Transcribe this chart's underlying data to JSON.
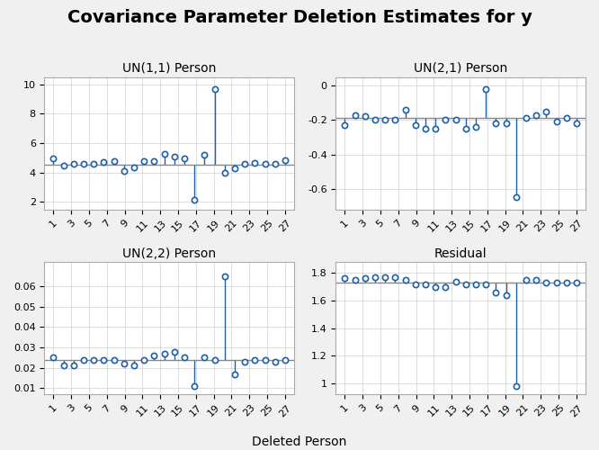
{
  "title": "Covariance Parameter Deletion Estimates for y",
  "xlabel": "Deleted Person",
  "x_labels": [
    "1",
    "3",
    "5",
    "7",
    "9",
    "11",
    "13",
    "15",
    "17",
    "19",
    "21",
    "23",
    "25",
    "27"
  ],
  "x_values": [
    1,
    3,
    5,
    7,
    9,
    11,
    13,
    15,
    17,
    19,
    21,
    23,
    25,
    27
  ],
  "subplots": [
    {
      "title": "UN(1,1) Person",
      "ref_line": 4.55,
      "ylim": [
        1.5,
        10.5
      ],
      "yticks": [
        2,
        4,
        6,
        8,
        10
      ],
      "values": [
        4.95,
        4.45,
        4.6,
        4.6,
        4.6,
        4.75,
        4.8,
        4.1,
        4.35,
        4.8,
        4.8,
        5.25,
        5.1,
        4.95,
        2.15,
        5.2,
        9.7,
        4.0,
        4.3,
        4.6,
        4.65,
        4.6,
        4.6,
        4.85
      ]
    },
    {
      "title": "UN(2,1) Person",
      "ref_line": -0.19,
      "ylim": [
        -0.72,
        0.05
      ],
      "yticks": [
        0.0,
        -0.2,
        -0.4,
        -0.6
      ],
      "values": [
        -0.23,
        -0.17,
        -0.18,
        -0.2,
        -0.2,
        -0.2,
        -0.14,
        -0.23,
        -0.25,
        -0.25,
        -0.2,
        -0.2,
        -0.25,
        -0.24,
        -0.02,
        -0.22,
        -0.22,
        -0.65,
        -0.19,
        -0.17,
        -0.15,
        -0.21,
        -0.19,
        -0.22
      ]
    },
    {
      "title": "UN(2,2) Person",
      "ref_line": 0.024,
      "ylim": [
        0.007,
        0.072
      ],
      "yticks": [
        0.01,
        0.02,
        0.03,
        0.04,
        0.05,
        0.06
      ],
      "values": [
        0.025,
        0.021,
        0.021,
        0.024,
        0.024,
        0.024,
        0.024,
        0.022,
        0.021,
        0.024,
        0.026,
        0.027,
        0.028,
        0.025,
        0.011,
        0.025,
        0.024,
        0.065,
        0.017,
        0.023,
        0.024,
        0.024,
        0.023,
        0.024
      ]
    },
    {
      "title": "Residual",
      "ref_line": 1.73,
      "ylim": [
        0.92,
        1.88
      ],
      "yticks": [
        1.0,
        1.2,
        1.4,
        1.6,
        1.8
      ],
      "values": [
        1.76,
        1.75,
        1.76,
        1.77,
        1.77,
        1.77,
        1.75,
        1.72,
        1.72,
        1.7,
        1.7,
        1.74,
        1.72,
        1.72,
        1.72,
        1.66,
        1.64,
        0.98,
        1.75,
        1.75,
        1.73,
        1.73,
        1.73,
        1.73
      ]
    }
  ],
  "line_color": "#1f5fa6",
  "marker_color": "#1f5fa6",
  "ref_line_color": "#888888",
  "bg_color": "#f0f0f0",
  "plot_bg_color": "#ffffff",
  "title_fontsize": 14,
  "subplot_title_fontsize": 10,
  "tick_fontsize": 8,
  "label_fontsize": 10
}
